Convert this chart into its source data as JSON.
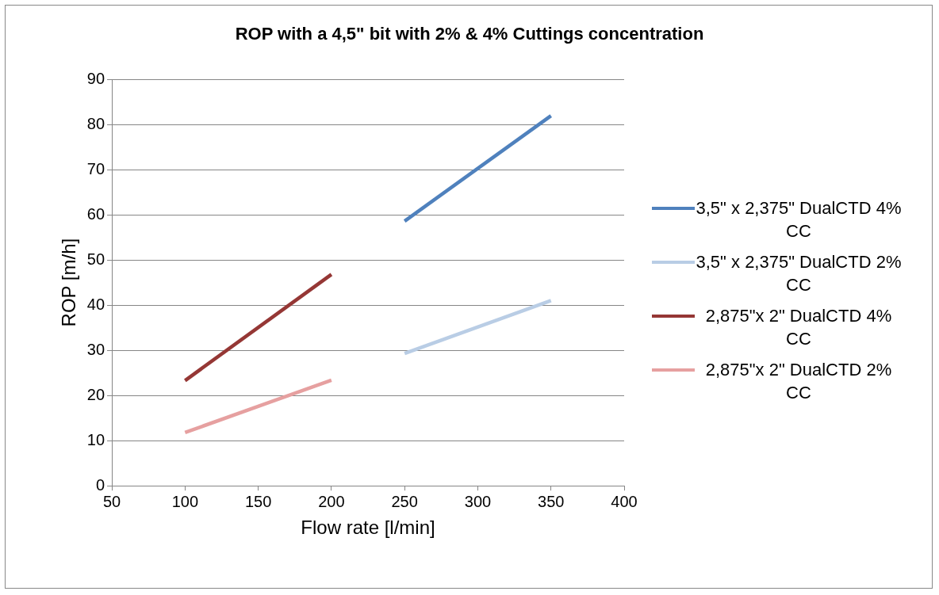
{
  "chart_data": {
    "type": "line",
    "title": "ROP with a 4,5\" bit with 2% & 4% Cuttings concentration",
    "xlabel": "Flow rate [l/min]",
    "ylabel": "ROP [m/h]",
    "xlim": [
      50,
      400
    ],
    "xticks": [
      50,
      100,
      150,
      200,
      250,
      300,
      350,
      400
    ],
    "ylim": [
      0,
      90
    ],
    "yticks": [
      0,
      10,
      20,
      30,
      40,
      50,
      60,
      70,
      80,
      90
    ],
    "grid": "y",
    "legend": "right",
    "marker": "none",
    "series": [
      {
        "name": "3,5\" x 2,375\" DualCTD 4% CC",
        "color": "#4f81bd",
        "x": [
          250,
          350
        ],
        "values": [
          58.6,
          81.9
        ]
      },
      {
        "name": "3,5\" x 2,375\" DualCTD 2% CC",
        "color": "#b9cde5",
        "x": [
          250,
          350
        ],
        "values": [
          29.3,
          41
        ]
      },
      {
        "name": "2,875\"x 2\" DualCTD 4% CC",
        "color": "#953735",
        "x": [
          100,
          200
        ],
        "values": [
          23.3,
          46.8
        ]
      },
      {
        "name": "2,875\"x 2\" DualCTD 2% CC",
        "color": "#e6a0a0",
        "x": [
          100,
          200
        ],
        "values": [
          11.8,
          23.4
        ]
      }
    ]
  }
}
